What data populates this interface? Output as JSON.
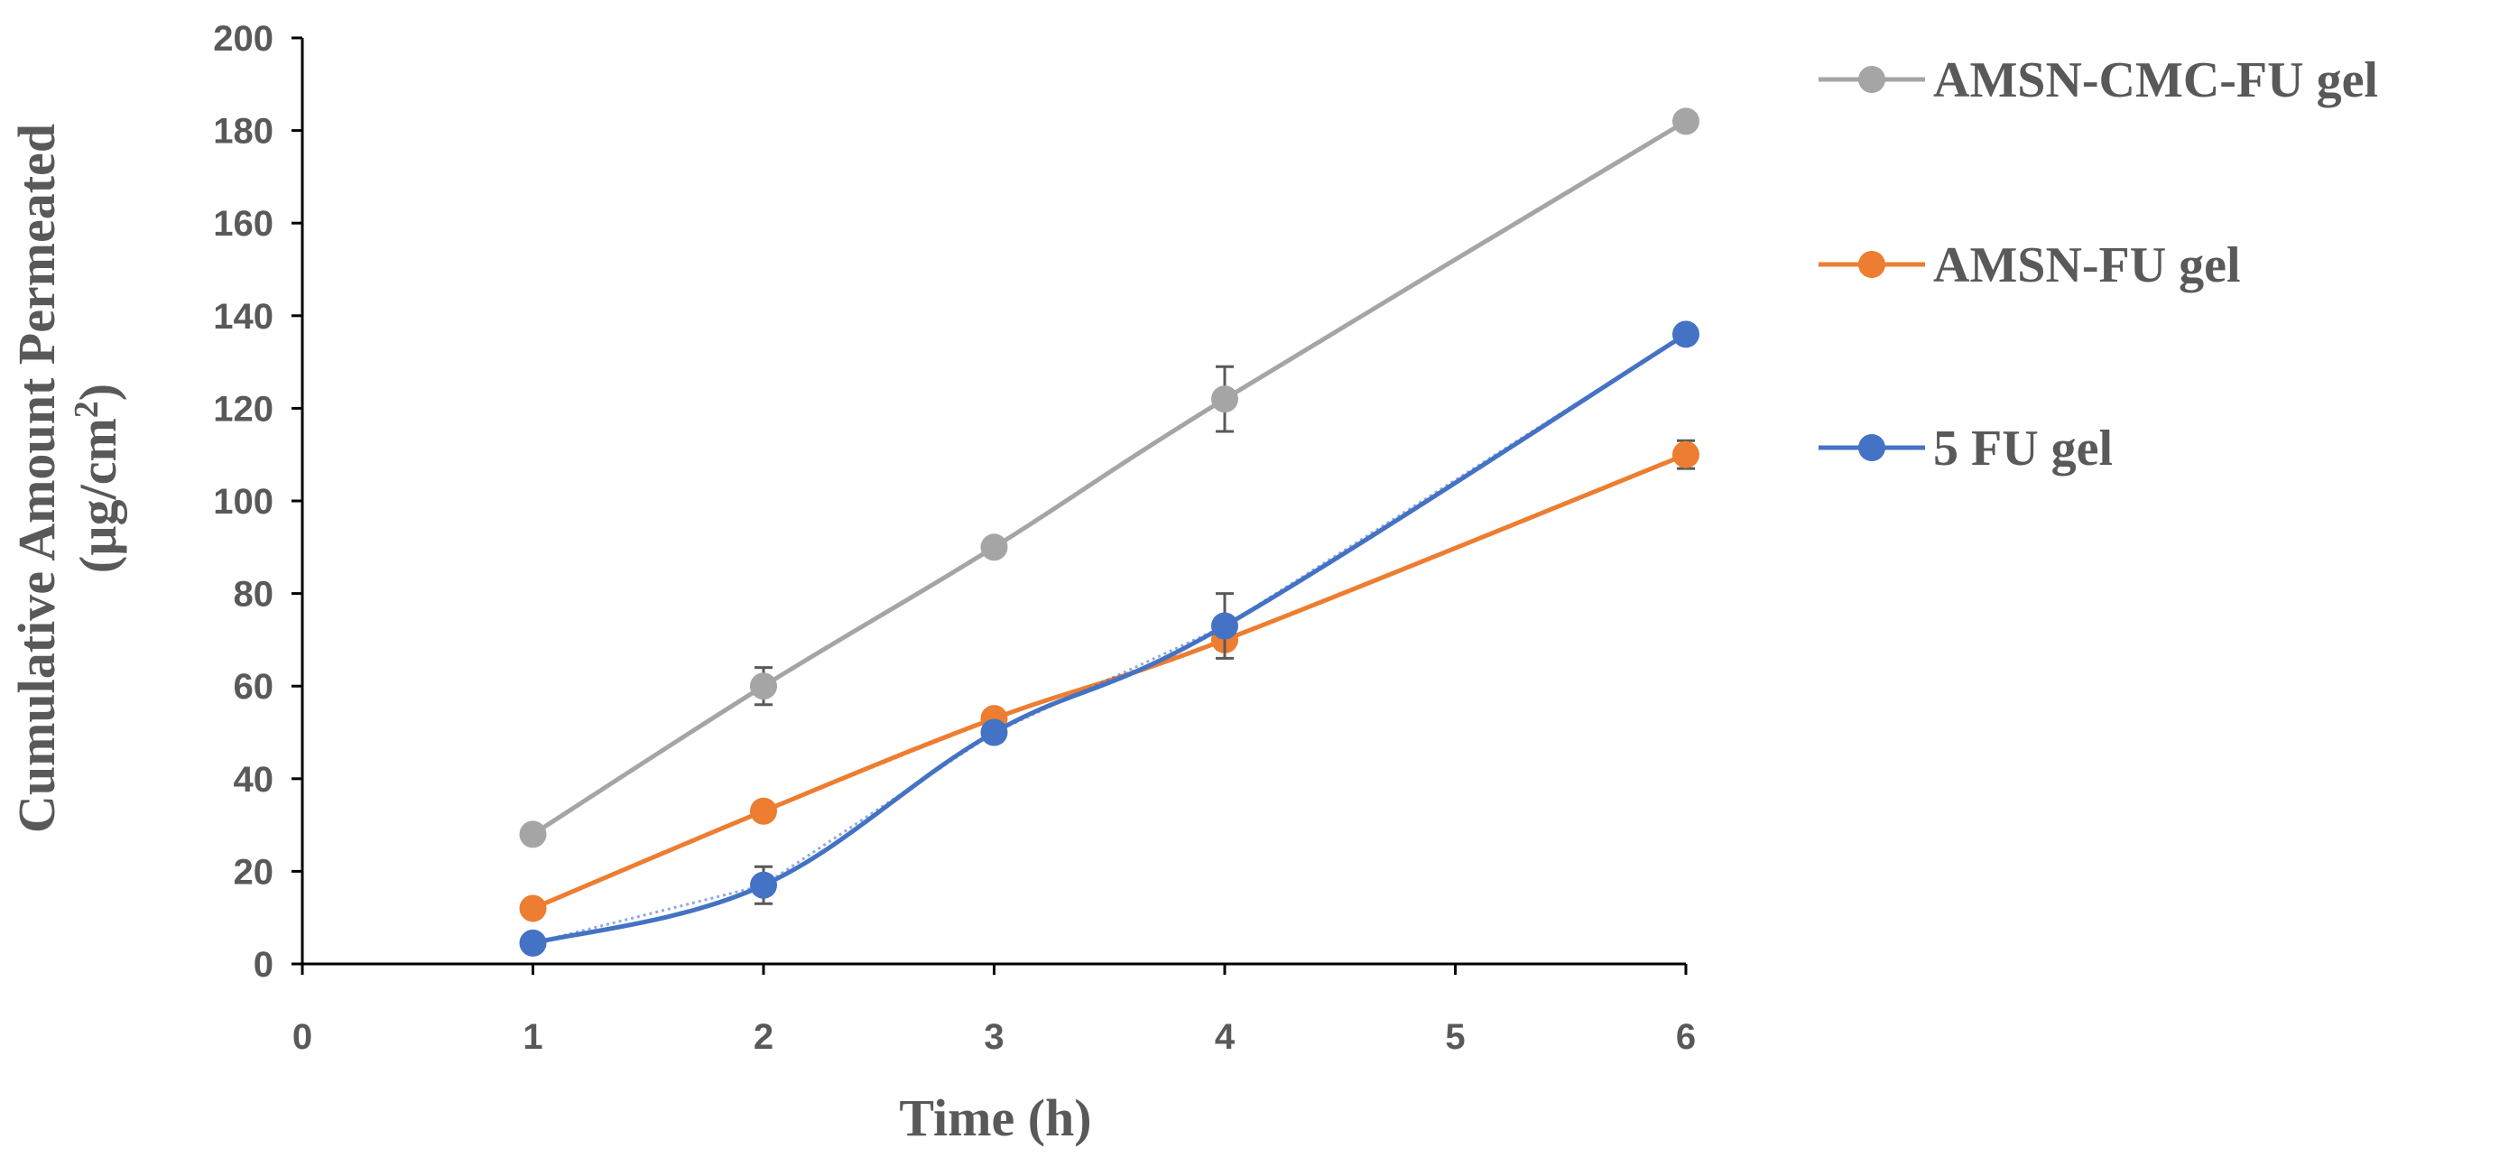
{
  "chart_data": {
    "type": "line",
    "title": "",
    "xlabel": "Time (h)",
    "ylabel_line1": "Cumulative  Amount Permeated",
    "ylabel_unit_base": "(µg/cm",
    "ylabel_unit_sup": "2",
    "ylabel_unit_close": ")",
    "xlim": [
      0,
      6
    ],
    "ylim": [
      0,
      200
    ],
    "x_ticks": [
      "0",
      "1",
      "2",
      "3",
      "4",
      "5",
      "6"
    ],
    "y_ticks": [
      "0",
      "20",
      "40",
      "60",
      "80",
      "100",
      "120",
      "140",
      "160",
      "180",
      "200"
    ],
    "grid": false,
    "legend_position": "right",
    "series": [
      {
        "name": "AMSN-CMC-FU gel",
        "color": "#A5A5A5",
        "x": [
          1,
          2,
          3,
          4,
          6
        ],
        "values": [
          28,
          60,
          90,
          122,
          182
        ],
        "errors": [
          1,
          4,
          1,
          7,
          1
        ]
      },
      {
        "name": "AMSN-FU gel",
        "color": "#ED7D31",
        "x": [
          1,
          2,
          3,
          4,
          6
        ],
        "values": [
          12,
          33,
          53,
          70,
          110
        ],
        "errors": [
          1,
          1,
          1,
          2,
          3
        ]
      },
      {
        "name": "5 FU gel",
        "color": "#4472C4",
        "x": [
          1,
          2,
          3,
          4,
          6
        ],
        "values": [
          4.5,
          17,
          50,
          73,
          136
        ],
        "errors": [
          1,
          4,
          1,
          7,
          1
        ]
      }
    ]
  }
}
